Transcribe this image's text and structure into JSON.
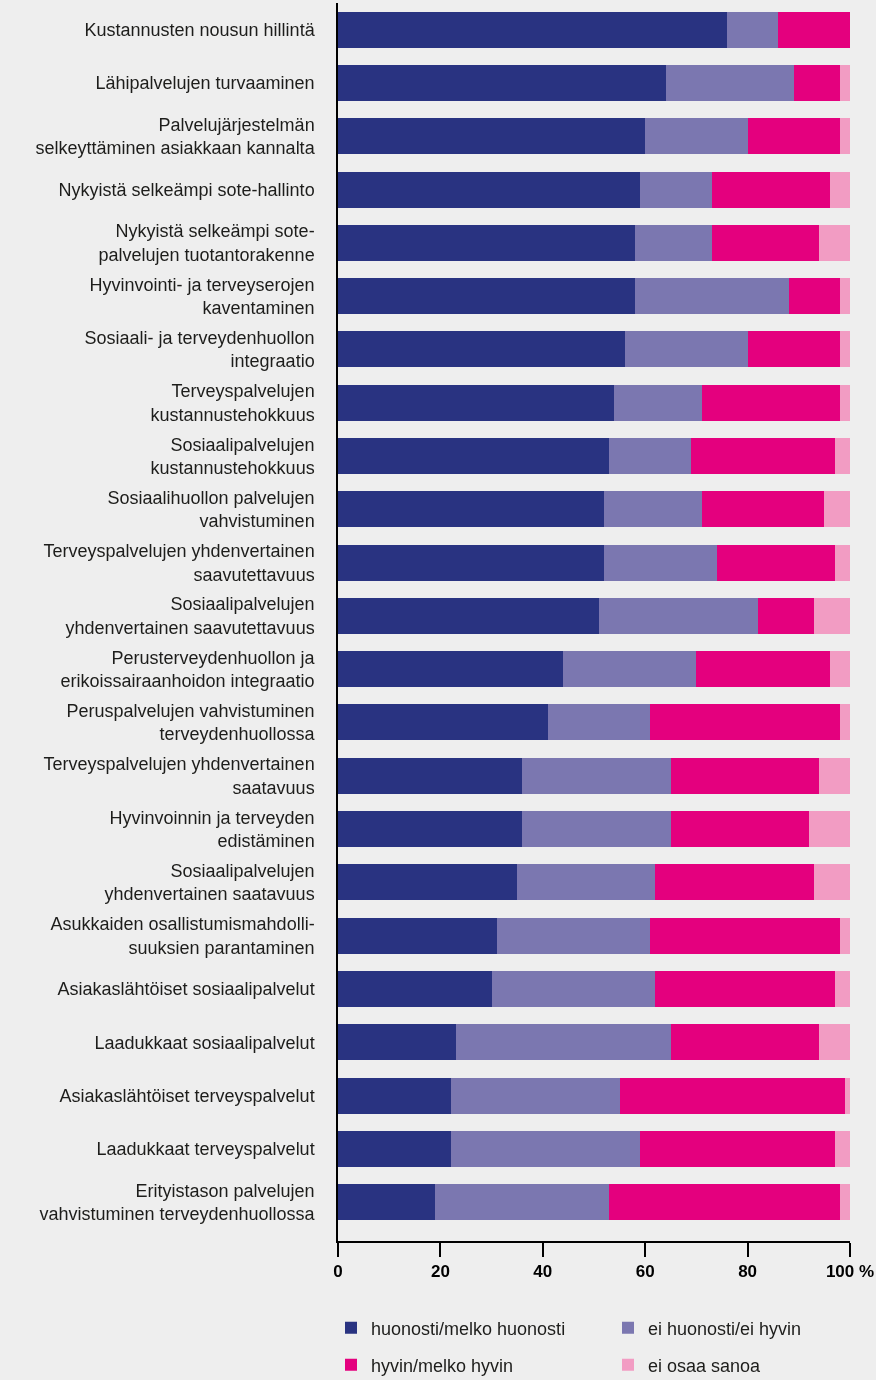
{
  "chart_data": {
    "type": "bar",
    "orientation": "horizontal",
    "stacked": true,
    "categories": [
      "Kustannusten nousun hillintä",
      "Lähipalvelujen turvaaminen",
      "Palvelujärjestelmän\nselkeyttäminen asiakkaan kannalta",
      "Nykyistä selkeämpi sote-hallinto",
      "Nykyistä selkeämpi sote-\npalvelujen tuotantorakenne",
      "Hyvinvointi- ja terveyserojen\nkaventaminen",
      "Sosiaali- ja terveydenhuollon\nintegraatio",
      "Terveyspalvelujen\nkustannustehokkuus",
      "Sosiaalipalvelujen\nkustannustehokkuus",
      "Sosiaalihuollon palvelujen\nvahvistuminen",
      "Terveyspalvelujen yhdenvertainen\nsaavutettavuus",
      "Sosiaalipalvelujen\nyhdenvertainen saavutettavuus",
      "Perusterveydenhuollon ja\nerikoissairaanhoidon integraatio",
      "Peruspalvelujen vahvistuminen\nterveydenhuollossa",
      "Terveyspalvelujen yhdenvertainen\nsaatavuus",
      "Hyvinvoinnin ja terveyden\nedistäminen",
      "Sosiaalipalvelujen\nyhdenvertainen saatavuus",
      "Asukkaiden osallistumismahdolli-\nsuuksien parantaminen",
      "Asiakaslähtöiset sosiaalipalvelut",
      "Laadukkaat sosiaalipalvelut",
      "Asiakaslähtöiset terveyspalvelut",
      "Laadukkaat terveyspalvelut",
      "Erityistason palvelujen\nvahvistuminen terveydenhuollossa"
    ],
    "series": [
      {
        "name": "huonosti/melko huonosti",
        "color": "#293381",
        "values": [
          76,
          64,
          60,
          59,
          58,
          58,
          56,
          54,
          53,
          52,
          52,
          51,
          44,
          41,
          36,
          36,
          35,
          31,
          30,
          23,
          22,
          22,
          19
        ]
      },
      {
        "name": "ei huonosti/ei hyvin",
        "color": "#7b77b0",
        "values": [
          10,
          25,
          20,
          14,
          15,
          30,
          24,
          17,
          16,
          19,
          22,
          31,
          26,
          20,
          29,
          29,
          27,
          30,
          32,
          42,
          33,
          37,
          34
        ]
      },
      {
        "name": "hyvin/melko hyvin",
        "color": "#e4007e",
        "values": [
          14,
          9,
          18,
          23,
          21,
          10,
          18,
          27,
          28,
          24,
          23,
          11,
          26,
          37,
          29,
          27,
          31,
          37,
          35,
          29,
          44,
          38,
          45
        ]
      },
      {
        "name": "ei osaa sanoa",
        "color": "#f29cc3",
        "values": [
          null,
          2,
          2,
          4,
          6,
          2,
          2,
          2,
          3,
          5,
          3,
          7,
          4,
          2,
          6,
          8,
          7,
          2,
          3,
          6,
          1,
          3,
          2
        ]
      }
    ],
    "xlim": [
      0,
      100
    ],
    "xticks": [
      0,
      20,
      40,
      60,
      80,
      {
        "value": 100,
        "label": "100 %"
      }
    ],
    "grid": false,
    "legend": "bottom left"
  }
}
